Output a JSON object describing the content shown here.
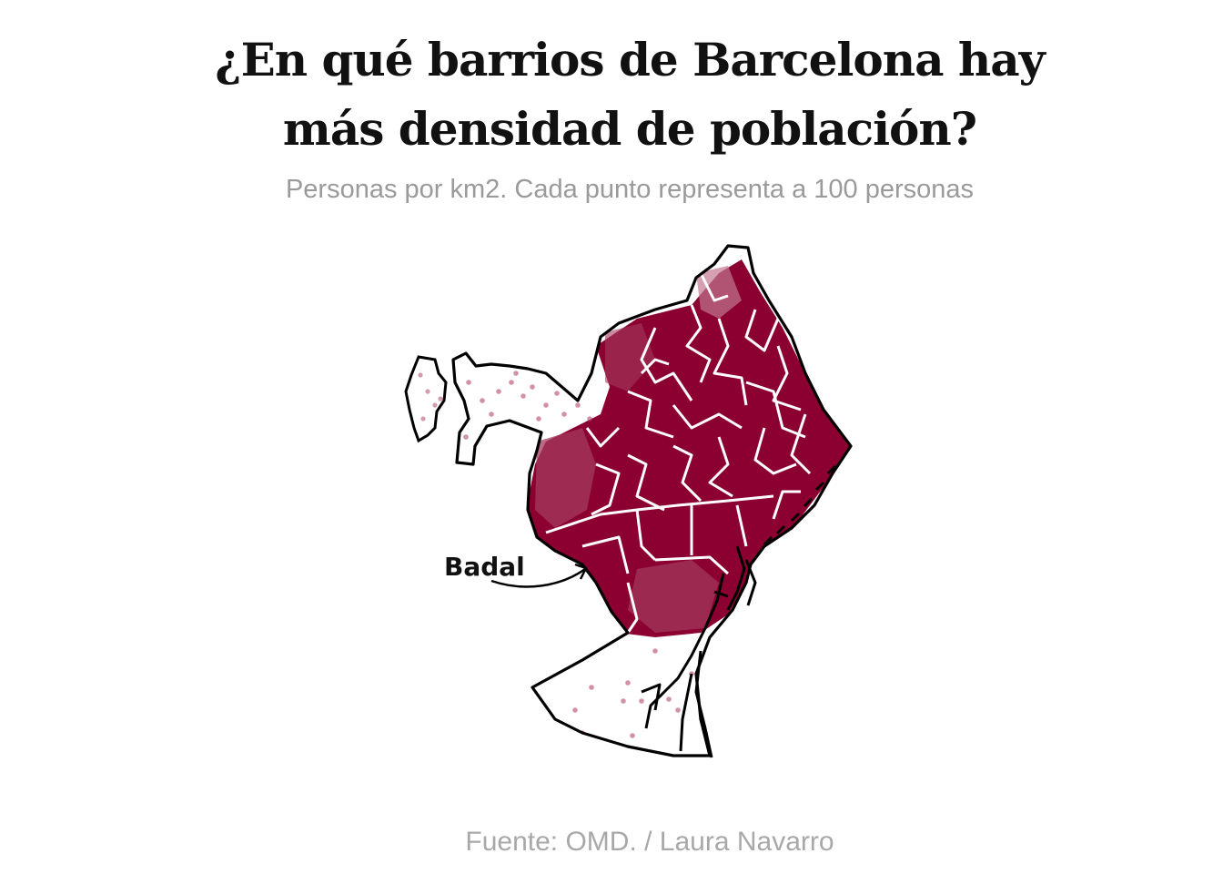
{
  "header": {
    "title_line1": "¿En qué barrios de Barcelona hay",
    "title_line2": "más densidad de población?",
    "subtitle": "Personas por km2. Cada punto representa a 100 personas"
  },
  "map": {
    "annotation": "Badal",
    "dense_color": "#8b0030",
    "dot_color": "#b5486e",
    "outline_color": "#000000",
    "boundary_color": "#ffffff"
  },
  "footer": {
    "source": "Fuente: OMD. / Laura Navarro"
  }
}
